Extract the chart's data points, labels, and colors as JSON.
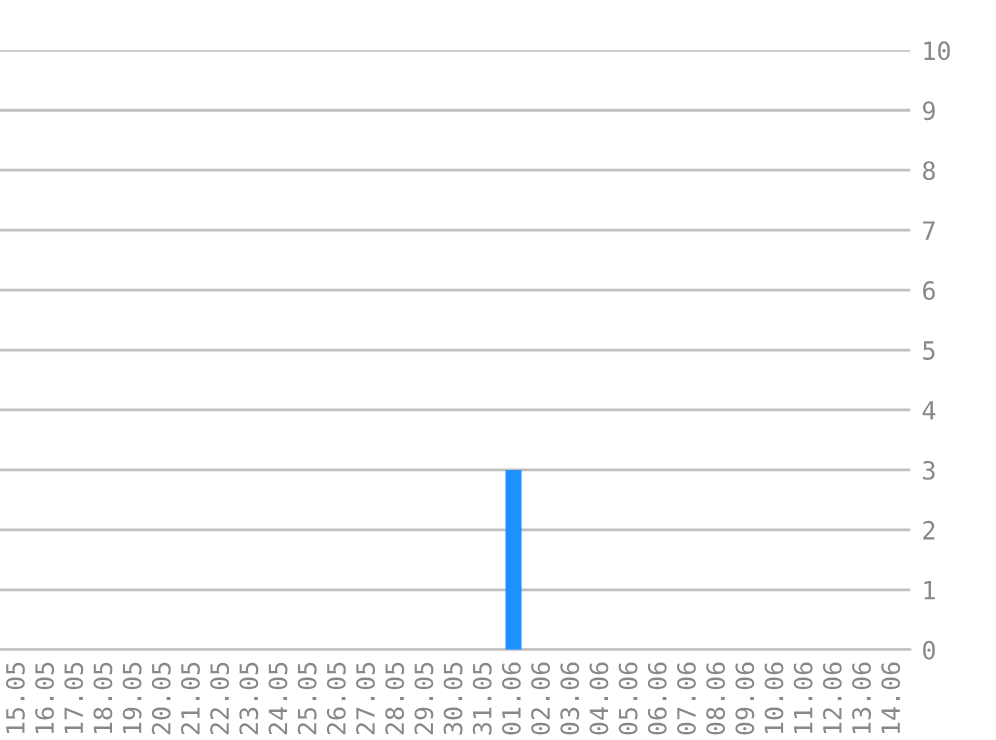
{
  "chart_data": {
    "type": "bar",
    "categories": [
      "15.05",
      "16.05",
      "17.05",
      "18.05",
      "19.05",
      "20.05",
      "21.05",
      "22.05",
      "23.05",
      "24.05",
      "25.05",
      "26.05",
      "27.05",
      "28.05",
      "29.05",
      "30.05",
      "31.05",
      "01.06",
      "02.06",
      "03.06",
      "04.06",
      "05.06",
      "06.06",
      "07.06",
      "08.06",
      "09.06",
      "10.06",
      "11.06",
      "12.06",
      "13.06",
      "14.06"
    ],
    "values": [
      0,
      0,
      0,
      0,
      0,
      0,
      0,
      0,
      0,
      0,
      0,
      0,
      0,
      0,
      0,
      0,
      0,
      3,
      0,
      0,
      0,
      0,
      0,
      0,
      0,
      0,
      0,
      0,
      0,
      0,
      0
    ],
    "color": "#1e90ff",
    "ylim": [
      0,
      10
    ],
    "yticks": [
      0,
      1,
      2,
      3,
      4,
      5,
      6,
      7,
      8,
      9,
      10
    ],
    "grid": "y"
  }
}
